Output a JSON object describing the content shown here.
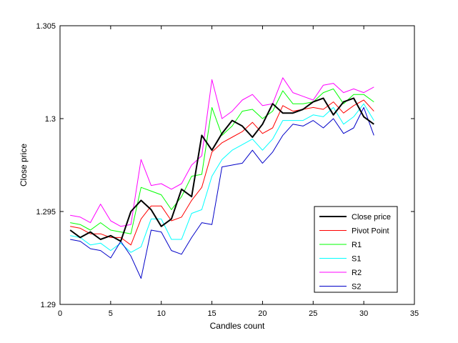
{
  "chart_data": {
    "type": "line",
    "title": "",
    "xlabel": "Candles count",
    "ylabel": "Close price",
    "xlim": [
      0,
      35
    ],
    "ylim": [
      1.29,
      1.305
    ],
    "xticks": [
      0,
      5,
      10,
      15,
      20,
      25,
      30,
      35
    ],
    "xtick_labels": [
      "0",
      "5",
      "10",
      "15",
      "20",
      "25",
      "30",
      "35"
    ],
    "yticks": [
      1.29,
      1.295,
      1.3,
      1.305
    ],
    "ytick_labels": [
      "1.29",
      "1.295",
      "1.3",
      "1.305"
    ],
    "grid": false,
    "legend_position": "bottom-right",
    "x": [
      1,
      2,
      3,
      4,
      5,
      6,
      7,
      8,
      9,
      10,
      11,
      12,
      13,
      14,
      15,
      16,
      17,
      18,
      19,
      20,
      21,
      22,
      23,
      24,
      25,
      26,
      27,
      28,
      29,
      30,
      31
    ],
    "series": [
      {
        "name": "Close price",
        "color": "#000000",
        "width": 2,
        "values": [
          1.294,
          1.2936,
          1.2939,
          1.2935,
          1.2937,
          1.2934,
          1.295,
          1.2956,
          1.2951,
          1.2942,
          1.2946,
          1.2962,
          1.2958,
          1.2991,
          1.2983,
          1.2992,
          1.2999,
          1.2996,
          1.299,
          1.2997,
          1.3008,
          1.3003,
          1.3003,
          1.3005,
          1.3009,
          1.3011,
          1.3002,
          1.3009,
          1.3011,
          1.3001,
          1.2997
        ]
      },
      {
        "name": "Pivot Point",
        "color": "#ff0000",
        "width": 1,
        "values": [
          1.2942,
          1.2941,
          1.2938,
          1.2938,
          1.2936,
          1.2936,
          1.2932,
          1.2946,
          1.2953,
          1.2953,
          1.2945,
          1.2947,
          1.2956,
          1.2963,
          1.2982,
          1.2987,
          1.299,
          1.2993,
          1.2998,
          1.2992,
          1.2995,
          1.3007,
          1.3004,
          1.3005,
          1.3006,
          1.3005,
          1.3009,
          1.3003,
          1.3007,
          1.301,
          1.3004
        ]
      },
      {
        "name": "R1",
        "color": "#00ff00",
        "width": 1,
        "values": [
          1.2944,
          1.2943,
          1.294,
          1.2944,
          1.294,
          1.2939,
          1.2938,
          1.2963,
          1.2961,
          1.2959,
          1.2951,
          1.2958,
          1.2969,
          1.297,
          1.3006,
          1.2991,
          1.2996,
          1.3004,
          1.3005,
          1.3,
          1.3004,
          1.3015,
          1.3008,
          1.3008,
          1.3009,
          1.3014,
          1.3016,
          1.3008,
          1.3013,
          1.3013,
          1.3009
        ]
      },
      {
        "name": "S1",
        "color": "#00ffff",
        "width": 1,
        "values": [
          1.2937,
          1.2936,
          1.2932,
          1.2933,
          1.2929,
          1.2933,
          1.2928,
          1.2931,
          1.2946,
          1.2946,
          1.2935,
          1.2935,
          1.2949,
          1.2951,
          1.2969,
          1.2978,
          1.2983,
          1.2986,
          1.2989,
          1.2983,
          1.2989,
          1.2999,
          1.2999,
          1.2999,
          1.3002,
          1.3001,
          1.3006,
          1.2997,
          1.3001,
          1.3008,
          1.2999
        ]
      },
      {
        "name": "R2",
        "color": "#ff00ff",
        "width": 1,
        "values": [
          1.2948,
          1.2947,
          1.2944,
          1.2954,
          1.2945,
          1.2942,
          1.2943,
          1.2978,
          1.2964,
          1.2965,
          1.2962,
          1.2965,
          1.2975,
          1.298,
          1.3021,
          1.3,
          1.3004,
          1.301,
          1.3013,
          1.3007,
          1.3008,
          1.3022,
          1.3014,
          1.3012,
          1.301,
          1.3018,
          1.3019,
          1.3014,
          1.3016,
          1.3014,
          1.3017
        ]
      },
      {
        "name": "S2",
        "color": "#0000c8",
        "width": 1,
        "values": [
          1.2935,
          1.2934,
          1.293,
          1.2929,
          1.2925,
          1.2934,
          1.2926,
          1.2914,
          1.294,
          1.2939,
          1.2929,
          1.2927,
          1.2936,
          1.2944,
          1.2943,
          1.2974,
          1.2975,
          1.2976,
          1.2983,
          1.2976,
          1.2982,
          1.2991,
          1.2997,
          1.2996,
          1.2999,
          1.2995,
          1.3,
          1.2992,
          1.2995,
          1.3006,
          1.2991
        ]
      }
    ]
  }
}
